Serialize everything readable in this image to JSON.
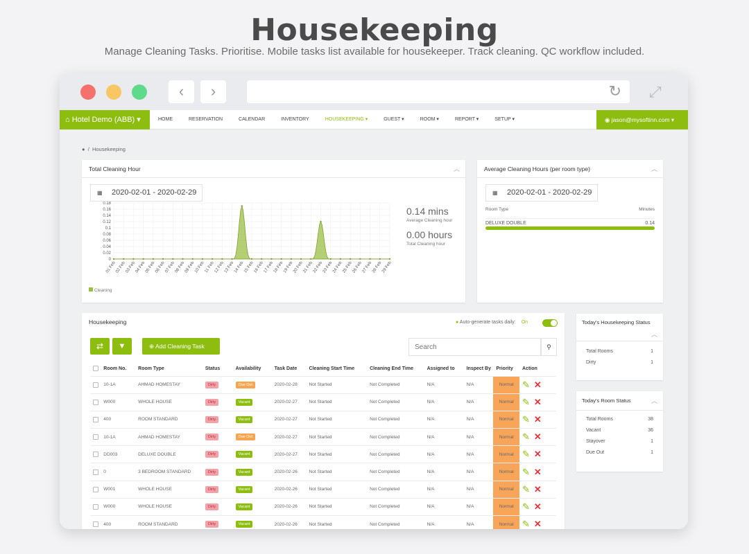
{
  "hero": {
    "title": "Housekeeping",
    "subtitle": "Manage Cleaning Tasks. Prioritise. Mobile tasks list available for housekeeper. Track cleaning. QC workflow included."
  },
  "nav": {
    "brand": "Hotel Demo (ABB)",
    "items": [
      "HOME",
      "RESERVATION",
      "CALENDAR",
      "INVENTORY",
      "HOUSEKEEPING",
      "GUEST",
      "ROOM",
      "REPORT",
      "SETUP"
    ],
    "active": "HOUSEKEEPING",
    "user": "jason@mysoftinn.com"
  },
  "breadcrumb": "Housekeeping",
  "total_cleaning": {
    "title": "Total Cleaning Hour",
    "date_range": "2020-02-01 - 2020-02-29",
    "avg_value": "0.14 mins",
    "avg_label": "Average Cleaning hour",
    "total_value": "0.00 hours",
    "total_label": "Total Cleaning hour",
    "legend": "Cleaning"
  },
  "chart_data": {
    "type": "area",
    "categories": [
      "01 Feb",
      "02 Feb",
      "03 Feb",
      "04 Feb",
      "05 Feb",
      "06 Feb",
      "07 Feb",
      "08 Feb",
      "09 Feb",
      "10 Feb",
      "11 Feb",
      "12 Feb",
      "13 Feb",
      "14 Feb",
      "15 Feb",
      "16 Feb",
      "17 Feb",
      "18 Feb",
      "19 Feb",
      "20 Feb",
      "21 Feb",
      "22 Feb",
      "23 Feb",
      "24 Feb",
      "25 Feb",
      "26 Feb",
      "27 Feb",
      "28 Feb",
      "29 Feb"
    ],
    "series": [
      {
        "name": "Cleaning",
        "values": [
          0,
          0,
          0,
          0,
          0,
          0,
          0,
          0,
          0,
          0,
          0,
          0,
          0,
          0.17,
          0,
          0,
          0,
          0,
          0,
          0,
          0,
          0.12,
          0,
          0,
          0,
          0,
          0,
          0,
          0
        ]
      }
    ],
    "yticks": [
      "0",
      "0.02",
      "0.04",
      "0.06",
      "0.08",
      "0.1",
      "0.12",
      "0.14",
      "0.16",
      "0.18"
    ],
    "ylim": [
      0,
      0.18
    ],
    "grid": true,
    "color": "#9bbf45"
  },
  "avg_by_type": {
    "title": "Average Cleaning Hours (per room type)",
    "date_range": "2020-02-01 - 2020-02-29",
    "col_room_type": "Room Type",
    "col_minutes": "Minutes",
    "rows": [
      {
        "type": "DELUXE DOUBLE",
        "minutes": "0.14",
        "fill": 1.0
      }
    ]
  },
  "housekeeping": {
    "title": "Housekeeping",
    "auto_label": "Auto-generate tasks daily:",
    "auto_state": "On",
    "add_button": "Add Cleaning Task",
    "search_placeholder": "Search",
    "columns": [
      "Room No.",
      "Room Type",
      "Status",
      "Availability",
      "Task Date",
      "Cleaning Start Time",
      "Cleaning End Time",
      "Assigned to",
      "Inspect By",
      "Priority",
      "Action"
    ],
    "rows": [
      {
        "room": "10-1A",
        "type": "AHMAD HOMESTAY",
        "status": "Dirty",
        "avail": "Due Out",
        "date": "2020-02-28",
        "start": "Not Started",
        "end": "Not Completed",
        "assigned": "N/A",
        "inspect": "N/A",
        "priority": "Normal"
      },
      {
        "room": "W000",
        "type": "WHOLE HOUSE",
        "status": "Dirty",
        "avail": "Vacant",
        "date": "2020-02-27",
        "start": "Not Started",
        "end": "Not Completed",
        "assigned": "N/A",
        "inspect": "N/A",
        "priority": "Normal"
      },
      {
        "room": "400",
        "type": "ROOM STANDARD",
        "status": "Dirty",
        "avail": "Vacant",
        "date": "2020-02-27",
        "start": "Not Started",
        "end": "Not Completed",
        "assigned": "N/A",
        "inspect": "N/A",
        "priority": "Normal"
      },
      {
        "room": "10-1A",
        "type": "AHMAD HOMESTAY",
        "status": "Dirty",
        "avail": "Due Out",
        "date": "2020-02-27",
        "start": "Not Started",
        "end": "Not Completed",
        "assigned": "N/A",
        "inspect": "N/A",
        "priority": "Normal"
      },
      {
        "room": "DD003",
        "type": "DELUXE DOUBLE",
        "status": "Dirty",
        "avail": "Vacant",
        "date": "2020-02-27",
        "start": "Not Started",
        "end": "Not Completed",
        "assigned": "N/A",
        "inspect": "N/A",
        "priority": "Normal"
      },
      {
        "room": "0",
        "type": "3 BEDROOM STANDARD",
        "status": "Dirty",
        "avail": "Vacant",
        "date": "2020-02-26",
        "start": "Not Started",
        "end": "Not Completed",
        "assigned": "N/A",
        "inspect": "N/A",
        "priority": "Normal"
      },
      {
        "room": "W001",
        "type": "WHOLE HOUSE",
        "status": "Dirty",
        "avail": "Vacant",
        "date": "2020-02-26",
        "start": "Not Started",
        "end": "Not Completed",
        "assigned": "N/A",
        "inspect": "N/A",
        "priority": "Normal"
      },
      {
        "room": "W000",
        "type": "WHOLE HOUSE",
        "status": "Dirty",
        "avail": "Vacant",
        "date": "2020-02-26",
        "start": "Not Started",
        "end": "Not Completed",
        "assigned": "N/A",
        "inspect": "N/A",
        "priority": "Normal"
      },
      {
        "room": "400",
        "type": "ROOM STANDARD",
        "status": "Dirty",
        "avail": "Vacant",
        "date": "2020-02-26",
        "start": "Not Started",
        "end": "Not Completed",
        "assigned": "N/A",
        "inspect": "N/A",
        "priority": "Normal"
      }
    ]
  },
  "hk_status": {
    "title": "Today's Housekeeping Status",
    "rows": [
      {
        "label": "Total Rooms",
        "value": "1"
      },
      {
        "label": "Dirty",
        "value": "1"
      }
    ]
  },
  "room_status": {
    "title": "Today's Room Status",
    "rows": [
      {
        "label": "Total Rooms",
        "value": "38"
      },
      {
        "label": "Vacant",
        "value": "36"
      },
      {
        "label": "Stayover",
        "value": "1"
      },
      {
        "label": "Due Out",
        "value": "1"
      }
    ]
  },
  "colors": {
    "accent": "#8cbd0f",
    "priority": "#f8a55a",
    "danger": "#e8323b"
  }
}
